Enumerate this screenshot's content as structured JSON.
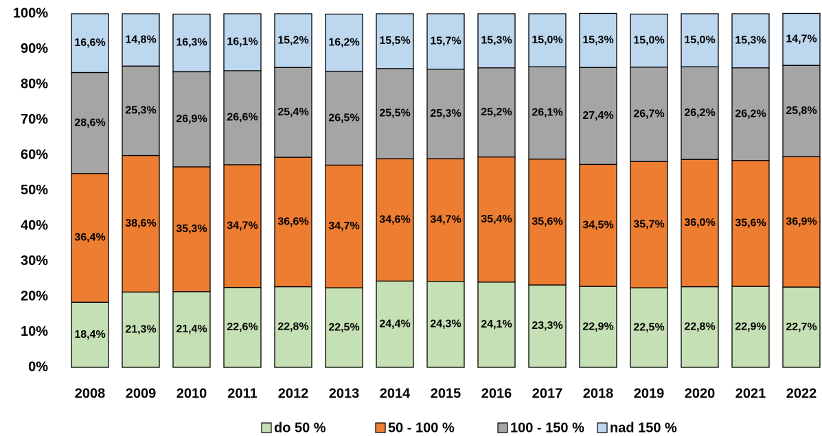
{
  "chart_data": {
    "type": "stacked_bar",
    "categories": [
      "2008",
      "2009",
      "2010",
      "2011",
      "2012",
      "2013",
      "2014",
      "2015",
      "2016",
      "2017",
      "2018",
      "2019",
      "2020",
      "2021",
      "2022"
    ],
    "series": [
      {
        "name": "do 50 %",
        "color": "#c5e0b4",
        "values": [
          18.4,
          21.3,
          21.4,
          22.6,
          22.8,
          22.5,
          24.4,
          24.3,
          24.1,
          23.3,
          22.9,
          22.5,
          22.8,
          22.9,
          22.7
        ],
        "value_labels": [
          "18,4%",
          "21,3%",
          "21,4%",
          "22,6%",
          "22,8%",
          "22,5%",
          "24,4%",
          "24,3%",
          "24,1%",
          "23,3%",
          "22,9%",
          "22,5%",
          "22,8%",
          "22,9%",
          "22,7%"
        ]
      },
      {
        "name": "50 - 100 %",
        "color": "#ed7d31",
        "values": [
          36.4,
          38.6,
          35.3,
          34.7,
          36.6,
          34.7,
          34.6,
          34.7,
          35.4,
          35.6,
          34.5,
          35.7,
          36.0,
          35.6,
          36.9
        ],
        "value_labels": [
          "36,4%",
          "38,6%",
          "35,3%",
          "34,7%",
          "36,6%",
          "34,7%",
          "34,6%",
          "34,7%",
          "35,4%",
          "35,6%",
          "34,5%",
          "35,7%",
          "36,0%",
          "35,6%",
          "36,9%"
        ]
      },
      {
        "name": "100 - 150 %",
        "color": "#a5a5a5",
        "values": [
          28.6,
          25.3,
          26.9,
          26.6,
          25.4,
          26.5,
          25.5,
          25.3,
          25.2,
          26.1,
          27.4,
          26.7,
          26.2,
          26.2,
          25.8
        ],
        "value_labels": [
          "28,6%",
          "25,3%",
          "26,9%",
          "26,6%",
          "25,4%",
          "26,5%",
          "25,5%",
          "25,3%",
          "25,2%",
          "26,1%",
          "27,4%",
          "26,7%",
          "26,2%",
          "26,2%",
          "25,8%"
        ]
      },
      {
        "name": "nad 150 %",
        "color": "#bdd7ee",
        "values": [
          16.6,
          14.8,
          16.3,
          16.1,
          15.2,
          16.2,
          15.5,
          15.7,
          15.3,
          15.0,
          15.3,
          15.0,
          15.0,
          15.3,
          14.7
        ],
        "value_labels": [
          "16,6%",
          "14,8%",
          "16,3%",
          "16,1%",
          "15,2%",
          "16,2%",
          "15,5%",
          "15,7%",
          "15,3%",
          "15,0%",
          "15,3%",
          "15,0%",
          "15,0%",
          "15,3%",
          "14,7%"
        ]
      }
    ],
    "ylim": [
      0,
      100
    ],
    "yticks": [
      {
        "value": 0,
        "label": "0%"
      },
      {
        "value": 10,
        "label": "10%"
      },
      {
        "value": 20,
        "label": "20%"
      },
      {
        "value": 30,
        "label": "30%"
      },
      {
        "value": 40,
        "label": "40%"
      },
      {
        "value": 50,
        "label": "50%"
      },
      {
        "value": 60,
        "label": "60%"
      },
      {
        "value": 70,
        "label": "70%"
      },
      {
        "value": 80,
        "label": "80%"
      },
      {
        "value": 90,
        "label": "90%"
      },
      {
        "value": 100,
        "label": "100%"
      }
    ],
    "legend": "bottom"
  }
}
